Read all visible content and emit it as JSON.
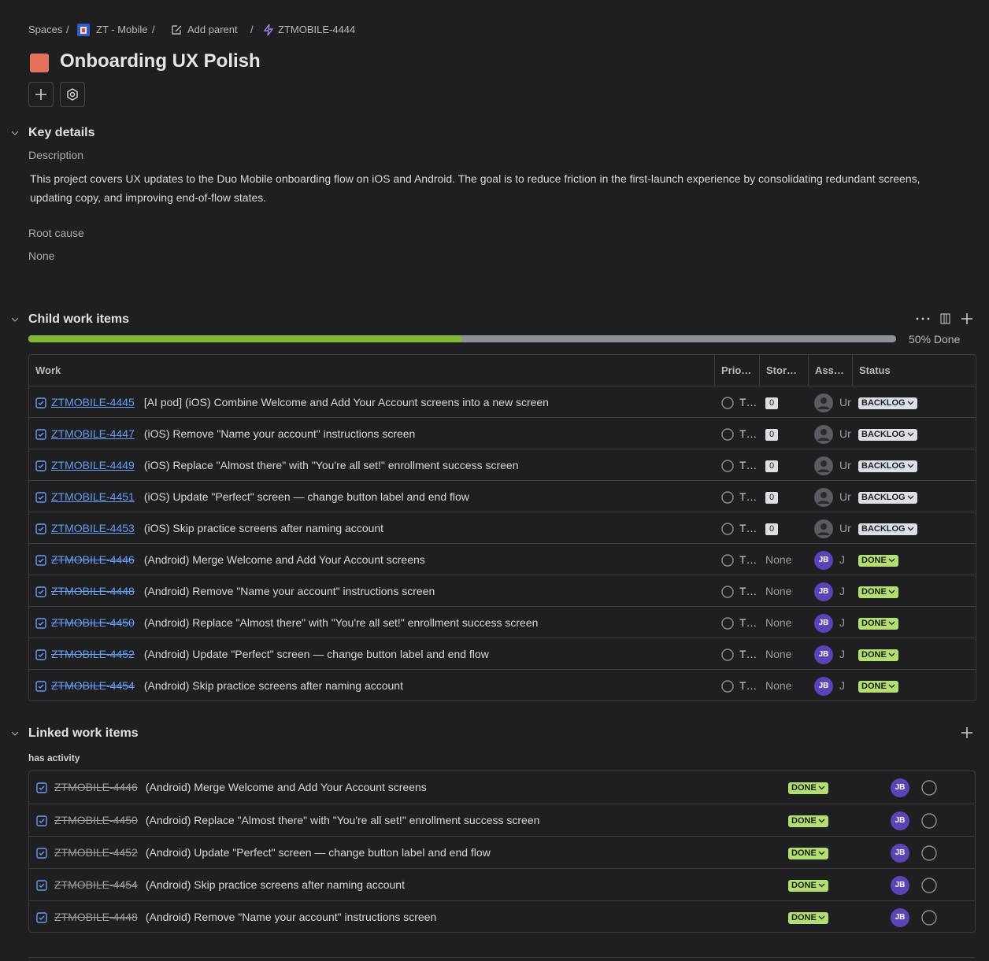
{
  "breadcrumbs": [
    "Spaces",
    "ZT - Mobile",
    "Add parent",
    "ZTMOBILE-4444"
  ],
  "title": "Onboarding UX Polish",
  "key_details": {
    "heading": "Key details",
    "description_label": "Description",
    "description": "This project covers UX updates to the Duo Mobile onboarding flow on iOS and Android. The goal is to reduce friction in the first-launch experience by consolidating redundant screens, updating copy, and improving end-of-flow states.",
    "root_cause_label": "Root cause",
    "root_cause": "None"
  },
  "child_items": {
    "heading": "Child work items",
    "progress_percent": 50,
    "progress_label": "50% Done",
    "columns": [
      "Work",
      "Prio…",
      "Stor…",
      "Ass…",
      "Status"
    ],
    "rows": [
      {
        "key": "ZTMOBILE-4445",
        "summary": "[AI pod] (iOS) Combine Welcome and Add Your Account screens into a new screen",
        "priority": "T…",
        "story_points": "0",
        "assignee": "Ur",
        "status": "BACKLOG",
        "done": false
      },
      {
        "key": "ZTMOBILE-4447",
        "summary": "(iOS) Remove \"Name your account\" instructions screen",
        "priority": "T…",
        "story_points": "0",
        "assignee": "Ur",
        "status": "BACKLOG",
        "done": false
      },
      {
        "key": "ZTMOBILE-4449",
        "summary": "(iOS) Replace \"Almost there\" with \"You're all set!\" enrollment success screen",
        "priority": "T…",
        "story_points": "0",
        "assignee": "Ur",
        "status": "BACKLOG",
        "done": false
      },
      {
        "key": "ZTMOBILE-4451",
        "summary": "(iOS) Update \"Perfect\" screen — change button label and end flow",
        "priority": "T…",
        "story_points": "0",
        "assignee": "Ur",
        "status": "BACKLOG",
        "done": false
      },
      {
        "key": "ZTMOBILE-4453",
        "summary": "(iOS) Skip practice screens after naming account",
        "priority": "T…",
        "story_points": "0",
        "assignee": "Ur",
        "status": "BACKLOG",
        "done": false
      },
      {
        "key": "ZTMOBILE-4446",
        "summary": "(Android) Merge Welcome and Add Your Account screens",
        "priority": "T…",
        "story_points": "None",
        "avatar": "JB",
        "assignee": "J",
        "status": "DONE",
        "done": true
      },
      {
        "key": "ZTMOBILE-4448",
        "summary": "(Android) Remove \"Name your account\" instructions screen",
        "priority": "T…",
        "story_points": "None",
        "avatar": "JB",
        "assignee": "J",
        "status": "DONE",
        "done": true
      },
      {
        "key": "ZTMOBILE-4450",
        "summary": "(Android) Replace \"Almost there\" with \"You're all set!\" enrollment success screen",
        "priority": "T…",
        "story_points": "None",
        "avatar": "JB",
        "assignee": "J",
        "status": "DONE",
        "done": true
      },
      {
        "key": "ZTMOBILE-4452",
        "summary": "(Android) Update \"Perfect\" screen — change button label and end flow",
        "priority": "T…",
        "story_points": "None",
        "avatar": "JB",
        "assignee": "J",
        "status": "DONE",
        "done": true
      },
      {
        "key": "ZTMOBILE-4454",
        "summary": "(Android) Skip practice screens after naming account",
        "priority": "T…",
        "story_points": "None",
        "avatar": "JB",
        "assignee": "J",
        "status": "DONE",
        "done": true
      }
    ]
  },
  "linked_items": {
    "heading": "Linked work items",
    "group": "has activity",
    "rows": [
      {
        "key": "ZTMOBILE-4446",
        "summary": "(Android) Merge Welcome and Add Your Account screens",
        "status": "DONE",
        "avatar": "JB"
      },
      {
        "key": "ZTMOBILE-4450",
        "summary": "(Android) Replace \"Almost there\" with \"You're all set!\" enrollment success screen",
        "status": "DONE",
        "avatar": "JB"
      },
      {
        "key": "ZTMOBILE-4452",
        "summary": "(Android) Update \"Perfect\" screen — change button label and end flow",
        "status": "DONE",
        "avatar": "JB"
      },
      {
        "key": "ZTMOBILE-4454",
        "summary": "(Android) Skip practice screens after naming account",
        "status": "DONE",
        "avatar": "JB"
      },
      {
        "key": "ZTMOBILE-4448",
        "summary": "(Android) Remove \"Name your account\" instructions screen",
        "status": "DONE",
        "avatar": "JB"
      }
    ]
  }
}
